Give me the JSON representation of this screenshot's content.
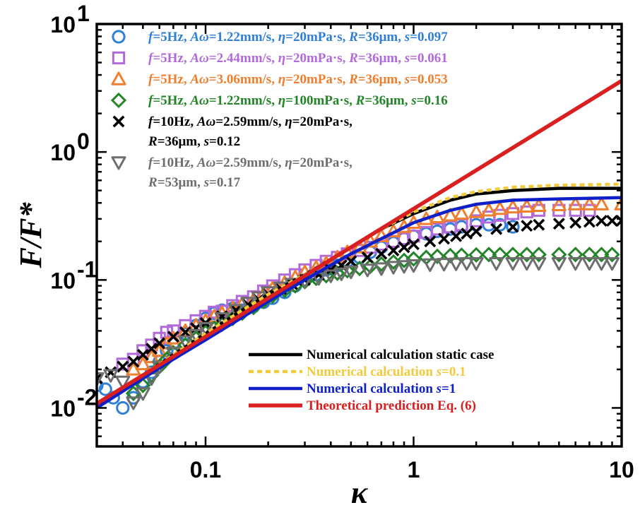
{
  "chart_data": {
    "type": "scatter",
    "xscale": "log",
    "yscale": "log",
    "xlim": [
      0.03,
      10
    ],
    "ylim": [
      0.005,
      10
    ],
    "xlabel": "κ",
    "ylabel": "F/F*",
    "x_ticks": [
      {
        "value": 0.1,
        "label": "0.1"
      },
      {
        "value": 1,
        "label": "1"
      },
      {
        "value": 10,
        "label": "10"
      }
    ],
    "y_ticks": [
      {
        "value": 0.01,
        "base": "10",
        "exp": "-2"
      },
      {
        "value": 0.1,
        "base": "10",
        "exp": "-1"
      },
      {
        "value": 1,
        "base": "10",
        "exp": "0"
      },
      {
        "value": 10,
        "base": "10",
        "exp": "1"
      }
    ],
    "legend_position": "top-left",
    "line_legend_position": "bottom-right",
    "series": [
      {
        "name_lines": [
          "f=5Hz, Aω=1.22mm/s, η=20mPa·s, R=36μm, s=0.097"
        ],
        "marker": "circle",
        "color": "#2f7fd6",
        "x": [
          0.03,
          0.033,
          0.036,
          0.04,
          0.045,
          0.05,
          0.055,
          0.06,
          0.065,
          0.07,
          0.08,
          0.09,
          0.1,
          0.11,
          0.12,
          0.135,
          0.15,
          0.17,
          0.19,
          0.21,
          0.24,
          0.27,
          0.3,
          0.34,
          0.38,
          0.43,
          0.48,
          0.55,
          0.62,
          0.7,
          0.8,
          0.9,
          1.0,
          1.15,
          1.3,
          1.5,
          1.7,
          2.0,
          2.3,
          2.6,
          3.0
        ],
        "y": [
          0.015,
          0.014,
          0.012,
          0.01,
          0.012,
          0.016,
          0.019,
          0.023,
          0.028,
          0.032,
          0.038,
          0.044,
          0.05,
          0.055,
          0.058,
          0.06,
          0.058,
          0.062,
          0.067,
          0.072,
          0.08,
          0.09,
          0.1,
          0.11,
          0.12,
          0.13,
          0.14,
          0.15,
          0.165,
          0.18,
          0.195,
          0.21,
          0.22,
          0.23,
          0.24,
          0.25,
          0.26,
          0.27,
          0.27,
          0.27,
          0.26
        ]
      },
      {
        "name_lines": [
          "f=5Hz, Aω=2.44mm/s, η=20mPa·s, R=36μm, s=0.061"
        ],
        "marker": "square",
        "color": "#b36ad9",
        "x": [
          0.04,
          0.045,
          0.05,
          0.055,
          0.06,
          0.065,
          0.07,
          0.08,
          0.09,
          0.1,
          0.11,
          0.12,
          0.135,
          0.15,
          0.17,
          0.19,
          0.21,
          0.24,
          0.27,
          0.3,
          0.34,
          0.38,
          0.43,
          0.48,
          0.55,
          0.62,
          0.7,
          0.8,
          0.9,
          1.0,
          1.15,
          1.3,
          1.5,
          1.7,
          2.0,
          2.3,
          2.6,
          3.0,
          3.5,
          4.0,
          5.0,
          6.0,
          7.0
        ],
        "y": [
          0.022,
          0.024,
          0.028,
          0.031,
          0.035,
          0.039,
          0.04,
          0.044,
          0.048,
          0.052,
          0.056,
          0.057,
          0.063,
          0.068,
          0.074,
          0.082,
          0.09,
          0.1,
          0.11,
          0.12,
          0.13,
          0.14,
          0.15,
          0.16,
          0.17,
          0.18,
          0.19,
          0.2,
          0.21,
          0.22,
          0.235,
          0.25,
          0.26,
          0.27,
          0.29,
          0.31,
          0.32,
          0.33,
          0.34,
          0.35,
          0.35,
          0.35,
          0.35
        ]
      },
      {
        "name_lines": [
          "f=5Hz, Aω=3.06mm/s, η=20mPa·s, R=36μm, s=0.053"
        ],
        "marker": "triangle",
        "color": "#ef7f2e",
        "x": [
          0.045,
          0.05,
          0.055,
          0.06,
          0.065,
          0.07,
          0.08,
          0.09,
          0.1,
          0.11,
          0.12,
          0.135,
          0.15,
          0.17,
          0.19,
          0.21,
          0.24,
          0.27,
          0.3,
          0.34,
          0.38,
          0.43,
          0.48,
          0.55,
          0.62,
          0.7,
          0.8,
          0.9,
          1.0,
          1.15,
          1.3,
          1.5,
          1.7,
          2.0,
          2.3,
          2.6,
          3.0,
          3.5,
          4.0,
          5.0,
          6.0,
          7.0,
          8.0,
          10.0
        ],
        "y": [
          0.02,
          0.022,
          0.025,
          0.028,
          0.032,
          0.035,
          0.04,
          0.044,
          0.048,
          0.052,
          0.055,
          0.06,
          0.065,
          0.07,
          0.078,
          0.086,
          0.095,
          0.105,
          0.115,
          0.125,
          0.135,
          0.15,
          0.165,
          0.18,
          0.2,
          0.22,
          0.24,
          0.26,
          0.28,
          0.3,
          0.31,
          0.32,
          0.33,
          0.34,
          0.35,
          0.36,
          0.37,
          0.375,
          0.38,
          0.385,
          0.39,
          0.39,
          0.39,
          0.39
        ]
      },
      {
        "name_lines": [
          "f=5Hz, Aω=1.22mm/s, η=100mPa·s, R=36μm, s=0.16"
        ],
        "marker": "diamond",
        "color": "#238428",
        "x": [
          0.045,
          0.05,
          0.055,
          0.06,
          0.065,
          0.07,
          0.08,
          0.09,
          0.1,
          0.11,
          0.12,
          0.135,
          0.15,
          0.17,
          0.19,
          0.21,
          0.24,
          0.27,
          0.3,
          0.34,
          0.38,
          0.43,
          0.48,
          0.55,
          0.62,
          0.7,
          0.8,
          0.9,
          1.0,
          1.15,
          1.3,
          1.5,
          1.7,
          2.0,
          2.3,
          2.6,
          3.0,
          3.5,
          4.0,
          5.0,
          6.0,
          7.0,
          8.0,
          9.0
        ],
        "y": [
          0.013,
          0.015,
          0.018,
          0.021,
          0.024,
          0.027,
          0.031,
          0.035,
          0.039,
          0.042,
          0.045,
          0.05,
          0.055,
          0.061,
          0.068,
          0.075,
          0.083,
          0.09,
          0.097,
          0.103,
          0.108,
          0.113,
          0.118,
          0.123,
          0.128,
          0.133,
          0.138,
          0.142,
          0.146,
          0.15,
          0.153,
          0.155,
          0.156,
          0.157,
          0.158,
          0.158,
          0.158,
          0.158,
          0.158,
          0.158,
          0.158,
          0.158,
          0.158,
          0.158
        ]
      },
      {
        "name_lines": [
          "f=10Hz, Aω=2.59mm/s, η=20mPa·s,",
          "R=36μm, s=0.12"
        ],
        "marker": "cross",
        "color": "#000000",
        "x": [
          0.03,
          0.035,
          0.04,
          0.045,
          0.05,
          0.055,
          0.06,
          0.07,
          0.08,
          0.09,
          0.1,
          0.12,
          0.14,
          0.16,
          0.18,
          0.2,
          0.23,
          0.26,
          0.3,
          0.35,
          0.4,
          0.45,
          0.5,
          0.6,
          0.7,
          0.8,
          0.9,
          1.0,
          1.2,
          1.4,
          1.6,
          1.8,
          2.0,
          2.5,
          3.0,
          3.5,
          4.0,
          5.0,
          6.0,
          7.0,
          8.0,
          9.0,
          10.0
        ],
        "y": [
          0.017,
          0.019,
          0.021,
          0.023,
          0.026,
          0.029,
          0.032,
          0.036,
          0.039,
          0.042,
          0.046,
          0.052,
          0.058,
          0.064,
          0.07,
          0.077,
          0.085,
          0.093,
          0.1,
          0.11,
          0.12,
          0.13,
          0.14,
          0.15,
          0.16,
          0.17,
          0.18,
          0.19,
          0.2,
          0.21,
          0.22,
          0.23,
          0.24,
          0.25,
          0.26,
          0.265,
          0.27,
          0.275,
          0.28,
          0.285,
          0.29,
          0.29,
          0.29
        ]
      },
      {
        "name_lines": [
          "f=10Hz, Aω=2.59mm/s, η=20mPa·s,",
          "R=53μm, s=0.17"
        ],
        "marker": "triangle-down",
        "color": "#6e6e6e",
        "x": [
          0.03,
          0.035,
          0.04,
          0.045,
          0.05,
          0.055,
          0.06,
          0.07,
          0.08,
          0.09,
          0.1,
          0.12,
          0.14,
          0.16,
          0.18,
          0.2,
          0.23,
          0.26,
          0.3,
          0.35,
          0.4,
          0.45,
          0.5,
          0.6,
          0.7,
          0.8,
          0.9,
          1.0,
          1.2,
          1.4,
          1.6,
          1.8,
          2.0,
          2.5,
          3.0,
          3.5,
          4.0,
          5.0,
          6.0,
          7.0,
          8.0,
          9.0
        ],
        "y": [
          0.017,
          0.018,
          0.016,
          0.011,
          0.013,
          0.017,
          0.021,
          0.027,
          0.033,
          0.037,
          0.042,
          0.05,
          0.058,
          0.066,
          0.073,
          0.08,
          0.087,
          0.093,
          0.098,
          0.103,
          0.108,
          0.112,
          0.116,
          0.12,
          0.123,
          0.126,
          0.128,
          0.13,
          0.132,
          0.133,
          0.134,
          0.135,
          0.135,
          0.135,
          0.135,
          0.135,
          0.135,
          0.135,
          0.135,
          0.135,
          0.135,
          0.135
        ]
      }
    ],
    "lines": [
      {
        "name": "Numerical calculation static case",
        "color": "#000000",
        "dash": "solid",
        "text_color": "#000000",
        "x": [
          0.03,
          0.05,
          0.07,
          0.1,
          0.15,
          0.2,
          0.3,
          0.5,
          0.7,
          1.0,
          1.5,
          2.0,
          3.0,
          5.0,
          10.0
        ],
        "y": [
          0.01,
          0.018,
          0.026,
          0.038,
          0.058,
          0.077,
          0.11,
          0.18,
          0.25,
          0.33,
          0.42,
          0.47,
          0.5,
          0.52,
          0.52
        ]
      },
      {
        "name": "Numerical calculation s=0.1",
        "color": "#f2cb3c",
        "dash": "dotted",
        "text_color": "#f2cb3c",
        "x": [
          0.03,
          0.05,
          0.07,
          0.1,
          0.15,
          0.2,
          0.3,
          0.5,
          0.7,
          1.0,
          1.5,
          2.0,
          3.0,
          5.0,
          10.0
        ],
        "y": [
          0.01,
          0.018,
          0.026,
          0.038,
          0.058,
          0.077,
          0.11,
          0.18,
          0.25,
          0.34,
          0.44,
          0.49,
          0.53,
          0.55,
          0.56
        ]
      },
      {
        "name": "Numerical calculation s=1",
        "color": "#1020c8",
        "dash": "solid",
        "text_color": "#1020c8",
        "x": [
          0.03,
          0.05,
          0.07,
          0.1,
          0.15,
          0.2,
          0.3,
          0.5,
          0.7,
          1.0,
          1.5,
          2.0,
          3.0,
          5.0,
          10.0
        ],
        "y": [
          0.01,
          0.017,
          0.024,
          0.034,
          0.051,
          0.068,
          0.1,
          0.16,
          0.21,
          0.28,
          0.35,
          0.39,
          0.42,
          0.43,
          0.44
        ]
      },
      {
        "name": "Theoretical prediction Eq. (6)",
        "color": "#d91f1f",
        "dash": "solid",
        "text_color": "#d91f1f",
        "x": [
          0.03,
          10.0
        ],
        "y": [
          0.0108,
          3.6
        ]
      }
    ]
  }
}
